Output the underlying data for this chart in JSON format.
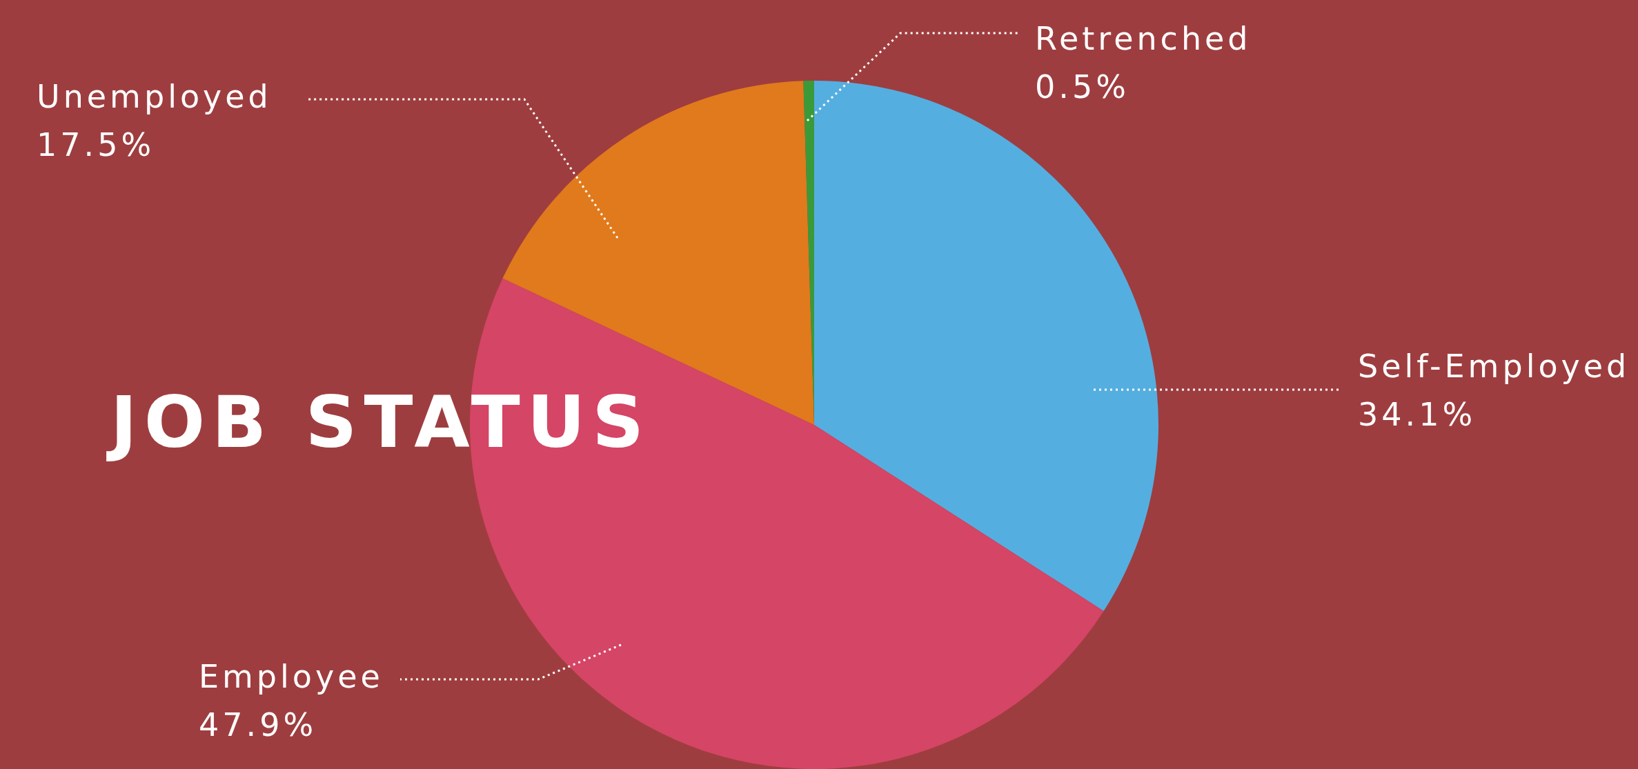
{
  "chart_data": {
    "type": "pie",
    "title": "JOB STATUS",
    "categories": [
      "Self-Employed",
      "Employee",
      "Unemployed",
      "Retrenched"
    ],
    "values": [
      34.1,
      47.9,
      17.5,
      0.5
    ],
    "colors": [
      "#55aee0",
      "#d54565",
      "#e07a1c",
      "#3a9a3a"
    ],
    "value_labels": [
      "34.1%",
      "47.9%",
      "17.5%",
      "0.5%"
    ]
  }
}
